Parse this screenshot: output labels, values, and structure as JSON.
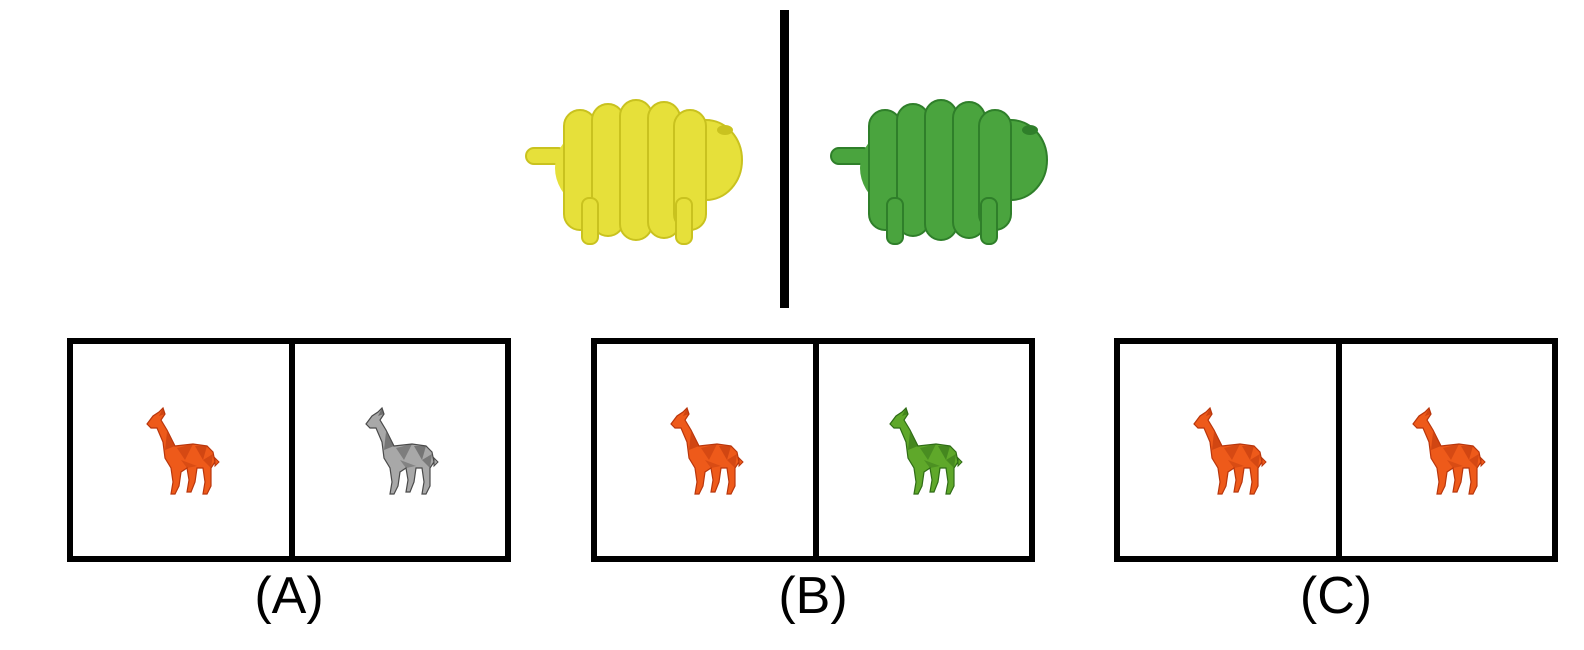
{
  "prompt": {
    "left_image": {
      "icon": "yellow-sheep-icon",
      "color": "#e6e03a",
      "shade": "#c9c21f"
    },
    "right_image": {
      "icon": "green-sheep-icon",
      "color": "#4aa43e",
      "shade": "#2f7f2a"
    }
  },
  "options": [
    {
      "label": "(A)",
      "left": {
        "icon": "orange-giraffe-icon",
        "color": "#ee5a1a",
        "shade": "#b9360c"
      },
      "right": {
        "icon": "gray-giraffe-icon",
        "color": "#a8a8a8",
        "shade": "#4a4a4a"
      }
    },
    {
      "label": "(B)",
      "left": {
        "icon": "orange-giraffe-icon",
        "color": "#ee5a1a",
        "shade": "#b9360c"
      },
      "right": {
        "icon": "green-giraffe-icon",
        "color": "#5fa82a",
        "shade": "#2f6c16"
      }
    },
    {
      "label": "(C)",
      "left": {
        "icon": "orange-giraffe-icon",
        "color": "#ee5a1a",
        "shade": "#b9360c"
      },
      "right": {
        "icon": "orange-giraffe-icon",
        "color": "#ee5a1a",
        "shade": "#b9360c"
      }
    }
  ]
}
